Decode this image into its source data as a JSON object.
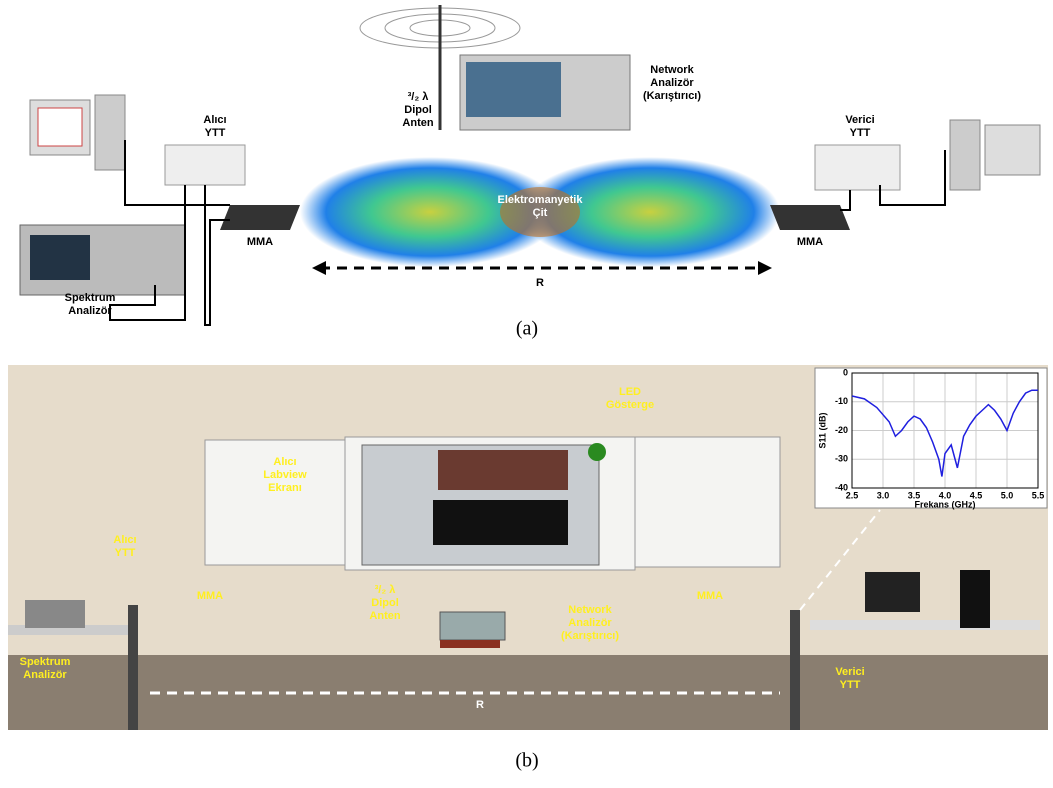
{
  "diagram_a": {
    "network_analyzer": [
      "Network",
      "Analizör",
      "(Karıştırıcı)"
    ],
    "dipole_antenna": [
      "³/₂ λ",
      "Dipol",
      "Anten"
    ],
    "receiver": [
      "Alıcı",
      "YTT"
    ],
    "transmitter": [
      "Verici",
      "YTT"
    ],
    "fence": [
      "Elektromanyetik",
      "Çit"
    ],
    "mma_left": "MMA",
    "mma_right": "MMA",
    "distance": "R",
    "spectrum_analyzer": [
      "Spektrum",
      "Analizör"
    ],
    "caption": "(a)"
  },
  "photo_b": {
    "led": [
      "LED",
      "Gösterge"
    ],
    "labview": [
      "Alıcı",
      "Labview",
      "Ekranı"
    ],
    "receiver": [
      "Alıcı",
      "YTT"
    ],
    "mma_left": "MMA",
    "dipole_antenna": [
      "³/₂ λ",
      "Dipol",
      "Anten"
    ],
    "network_analyzer": [
      "Network",
      "Analizör",
      "(Karıştırıcı)"
    ],
    "mma_right": "MMA",
    "spectrum_analyzer": [
      "Spektrum",
      "Analizör"
    ],
    "transmitter": [
      "Verici",
      "YTT"
    ],
    "distance": "R",
    "caption": "(b)"
  },
  "chart_data": {
    "type": "line",
    "x_label": "Frekans (GHz)",
    "y_label": "S11 (dB)",
    "color": "#1f1fdf",
    "x": [
      2.5,
      2.7,
      2.9,
      3.1,
      3.2,
      3.3,
      3.4,
      3.5,
      3.6,
      3.7,
      3.8,
      3.9,
      3.95,
      4.0,
      4.1,
      4.2,
      4.3,
      4.4,
      4.5,
      4.6,
      4.7,
      4.8,
      4.9,
      5.0,
      5.1,
      5.2,
      5.3,
      5.4,
      5.5
    ],
    "values": [
      -8,
      -9,
      -12,
      -17,
      -22,
      -20,
      -17,
      -15,
      -16,
      -19,
      -24,
      -30,
      -36,
      -28,
      -25,
      -33,
      -22,
      -18,
      -15,
      -13,
      -11,
      -13,
      -16,
      -20,
      -14,
      -10,
      -7,
      -6,
      -6
    ],
    "xlim": [
      2.5,
      5.5
    ],
    "ylim": [
      -40,
      0
    ],
    "xticks": [
      2.5,
      {
        "value": 3,
        "label": "3.0"
      },
      3.5,
      {
        "value": 4,
        "label": "4.0"
      },
      4.5,
      {
        "value": 5,
        "label": "5.0"
      },
      5.5
    ],
    "yticks": [
      0,
      -10,
      -20,
      -30,
      -40
    ],
    "grid": true
  }
}
